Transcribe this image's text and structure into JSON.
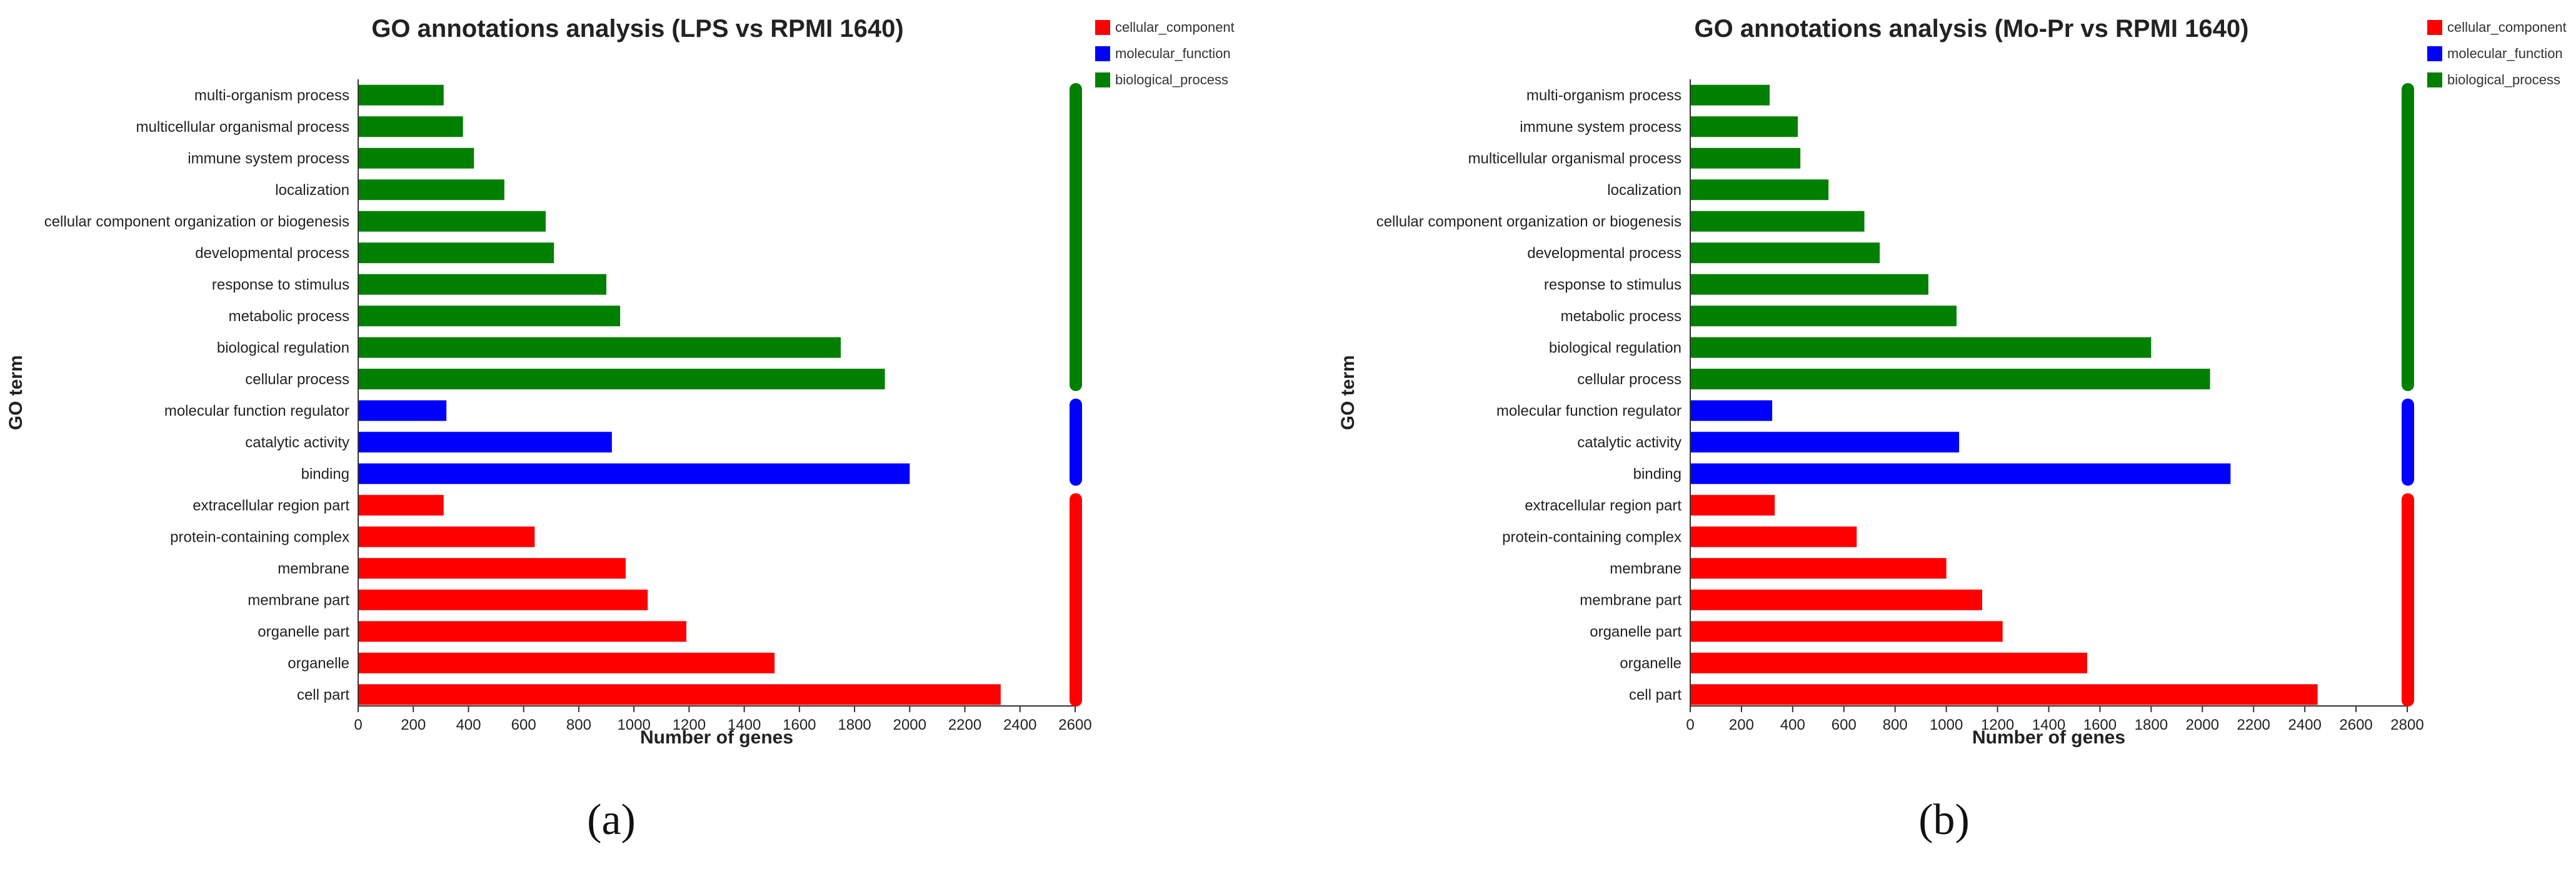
{
  "colors": {
    "cellular_component": "#ff0000",
    "molecular_function": "#0000ff",
    "biological_process": "#008000"
  },
  "chart_data": [
    {
      "type": "bar",
      "orientation": "horizontal",
      "title": "GO annotations analysis (LPS vs RPMI 1640)",
      "xlabel": "Number of genes",
      "ylabel": "GO term",
      "panel_label": "(a)",
      "xlim": [
        0,
        2600
      ],
      "xticks": [
        0,
        200,
        400,
        600,
        800,
        1000,
        1200,
        1400,
        1600,
        1800,
        2000,
        2200,
        2400,
        2600
      ],
      "legend": [
        "cellular_component",
        "molecular_function",
        "biological_process"
      ],
      "legend_position": "top-right",
      "categories": [
        "multi-organism process",
        "multicellular organismal process",
        "immune system process",
        "localization",
        "cellular component organization or biogenesis",
        "developmental process",
        "response to stimulus",
        "metabolic process",
        "biological regulation",
        "cellular process",
        "molecular function regulator",
        "catalytic activity",
        "binding",
        "extracellular region part",
        "protein-containing complex",
        "membrane",
        "membrane part",
        "organelle part",
        "organelle",
        "cell part"
      ],
      "groups": [
        "biological_process",
        "biological_process",
        "biological_process",
        "biological_process",
        "biological_process",
        "biological_process",
        "biological_process",
        "biological_process",
        "biological_process",
        "biological_process",
        "molecular_function",
        "molecular_function",
        "molecular_function",
        "cellular_component",
        "cellular_component",
        "cellular_component",
        "cellular_component",
        "cellular_component",
        "cellular_component",
        "cellular_component"
      ],
      "values": [
        310,
        380,
        420,
        530,
        680,
        710,
        900,
        950,
        1750,
        1910,
        320,
        920,
        2000,
        310,
        640,
        970,
        1050,
        1190,
        1510,
        2330
      ]
    },
    {
      "type": "bar",
      "orientation": "horizontal",
      "title": "GO annotations analysis (Mo-Pr vs RPMI 1640)",
      "xlabel": "Number of genes",
      "ylabel": "GO term",
      "panel_label": "(b)",
      "xlim": [
        0,
        2800
      ],
      "xticks": [
        0,
        200,
        400,
        600,
        800,
        1000,
        1200,
        1400,
        1600,
        1800,
        2000,
        2200,
        2400,
        2600,
        2800
      ],
      "legend": [
        "cellular_component",
        "molecular_function",
        "biological_process"
      ],
      "legend_position": "top-right",
      "categories": [
        "multi-organism process",
        "immune system process",
        "multicellular organismal process",
        "localization",
        "cellular component organization or biogenesis",
        "developmental process",
        "response to stimulus",
        "metabolic process",
        "biological regulation",
        "cellular process",
        "molecular function regulator",
        "catalytic activity",
        "binding",
        "extracellular region part",
        "protein-containing complex",
        "membrane",
        "membrane part",
        "organelle part",
        "organelle",
        "cell part"
      ],
      "groups": [
        "biological_process",
        "biological_process",
        "biological_process",
        "biological_process",
        "biological_process",
        "biological_process",
        "biological_process",
        "biological_process",
        "biological_process",
        "biological_process",
        "molecular_function",
        "molecular_function",
        "molecular_function",
        "cellular_component",
        "cellular_component",
        "cellular_component",
        "cellular_component",
        "cellular_component",
        "cellular_component",
        "cellular_component"
      ],
      "values": [
        310,
        420,
        430,
        540,
        680,
        740,
        930,
        1040,
        1800,
        2030,
        320,
        1050,
        2110,
        330,
        650,
        1000,
        1140,
        1220,
        1550,
        2450
      ]
    }
  ]
}
